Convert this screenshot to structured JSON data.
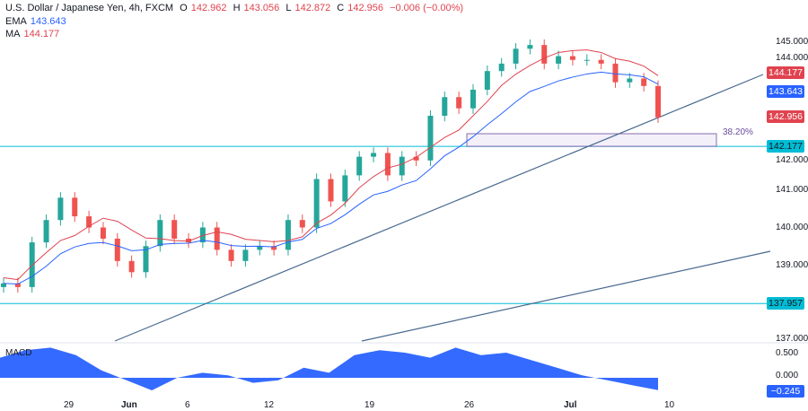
{
  "header": {
    "symbol": "U.S. Dollar / Japanese Yen, 4h, FXCM",
    "o_label": "O",
    "o": "142.962",
    "h_label": "H",
    "h": "143.056",
    "l_label": "L",
    "l": "142.872",
    "c_label": "C",
    "c": "142.956",
    "change": "−0.006 (−0.00%)",
    "ema_label": "EMA",
    "ema": "143.643",
    "ma_label": "MA",
    "ma": "144.177"
  },
  "price_axis": [
    "145.000",
    "144.000",
    "142.000",
    "141.000",
    "140.000",
    "139.000",
    "137.000"
  ],
  "price_tags": {
    "ma": "144.177",
    "ema": "143.643",
    "close": "142.956",
    "level1": "142.177",
    "level2": "137.957"
  },
  "fib_label": "38.20%",
  "macd": {
    "label": "MACD",
    "axis": [
      "0.500",
      "0.000"
    ],
    "tag": "−0.245",
    "values": [
      0.4,
      0.55,
      0.6,
      0.45,
      0.15,
      -0.05,
      -0.25,
      0.0,
      0.1,
      0.05,
      -0.1,
      -0.05,
      0.2,
      0.1,
      0.45,
      0.55,
      0.5,
      0.4,
      0.6,
      0.45,
      0.5,
      0.35,
      0.2,
      0.05,
      -0.05,
      -0.15,
      -0.245
    ]
  },
  "date_axis": [
    "29",
    "Jun",
    "6",
    "12",
    "19",
    "26",
    "Jul",
    "10"
  ],
  "colors": {
    "up": "#26a69a",
    "down": "#ef5350",
    "ema": "#2962ff",
    "ma": "#e0434f",
    "level": "#00bcd4",
    "trend": "#4a6a90",
    "macd": "#2962ff"
  },
  "chart_data": {
    "type": "candlestick",
    "closes": [
      138.5,
      138.4,
      139.6,
      140.2,
      140.8,
      140.3,
      140.0,
      139.7,
      139.1,
      138.8,
      139.5,
      140.2,
      139.7,
      139.6,
      140.0,
      139.4,
      139.1,
      139.4,
      139.5,
      139.4,
      140.2,
      140.0,
      141.3,
      140.7,
      141.4,
      141.9,
      142.0,
      141.4,
      141.9,
      141.8,
      143.0,
      143.5,
      143.2,
      143.7,
      144.2,
      144.4,
      144.8,
      144.9,
      144.4,
      144.6,
      144.5,
      144.5,
      144.4,
      143.9,
      144.0,
      143.8,
      142.956
    ],
    "levels": [
      142.177,
      137.957
    ],
    "yrange": [
      136.9,
      145.3
    ]
  }
}
